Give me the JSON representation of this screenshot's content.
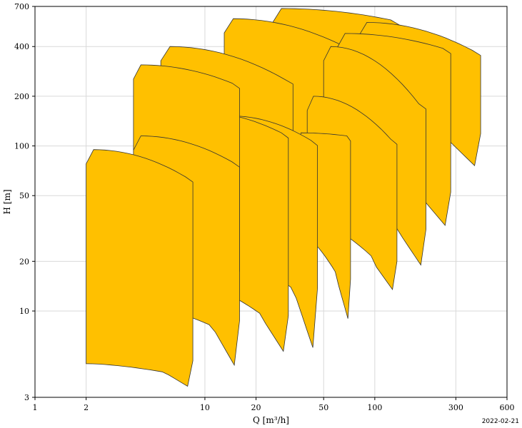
{
  "chart_data": {
    "type": "area",
    "x_scale": "log",
    "y_scale": "log",
    "xlim": [
      1,
      600
    ],
    "ylim": [
      3,
      700
    ],
    "grid": true,
    "xlabel": "Q [m³/h]",
    "ylabel": "H [m]",
    "x_ticks": [
      {
        "value": 1,
        "label": "1"
      },
      {
        "value": 2,
        "label": "2"
      },
      {
        "value": 10,
        "label": "10"
      },
      {
        "value": 20,
        "label": "20"
      },
      {
        "value": 50,
        "label": "50"
      },
      {
        "value": 100,
        "label": "100"
      },
      {
        "value": 300,
        "label": "300"
      },
      {
        "value": 600,
        "label": "600"
      }
    ],
    "y_ticks": [
      {
        "value": 3,
        "label": "3"
      },
      {
        "value": 10,
        "label": "10"
      },
      {
        "value": 20,
        "label": "20"
      },
      {
        "value": 50,
        "label": "50"
      },
      {
        "value": 100,
        "label": "100"
      },
      {
        "value": 200,
        "label": "200"
      },
      {
        "value": 400,
        "label": "400"
      },
      {
        "value": 700,
        "label": "700"
      }
    ],
    "fill_color": "#FFC000",
    "stroke_color": "#333333",
    "series": [
      {
        "q_min": 25,
        "q_max": 140,
        "h_top_left": 680,
        "h_top_right": 580,
        "h_bot_left": 115,
        "h_bot_right": 72,
        "h_bot_min": 70
      },
      {
        "q_min": 13,
        "q_max": 75,
        "h_top_left": 590,
        "h_top_right": 400,
        "h_bot_left": 72,
        "h_bot_right": 33,
        "h_bot_min": 30
      },
      {
        "q_min": 5.5,
        "q_max": 33,
        "h_top_left": 400,
        "h_top_right": 255,
        "h_bot_left": 36,
        "h_bot_right": 19,
        "h_bot_min": 15
      },
      {
        "q_min": 80,
        "q_max": 420,
        "h_top_left": 560,
        "h_top_right": 380,
        "h_bot_left": 150,
        "h_bot_right": 95,
        "h_bot_min": 76
      },
      {
        "q_min": 60,
        "q_max": 280,
        "h_top_left": 480,
        "h_top_right": 390,
        "h_bot_left": 75,
        "h_bot_right": 42,
        "h_bot_min": 33
      },
      {
        "q_min": 50,
        "q_max": 200,
        "h_top_left": 400,
        "h_top_right": 180,
        "h_bot_left": 48,
        "h_bot_right": 25,
        "h_bot_min": 19
      },
      {
        "q_min": 40,
        "q_max": 135,
        "h_top_left": 200,
        "h_top_right": 110,
        "h_bot_left": 36,
        "h_bot_right": 16,
        "h_bot_min": 13.5
      },
      {
        "q_min": 35,
        "q_max": 72,
        "h_top_left": 120,
        "h_top_right": 115,
        "h_bot_left": 30,
        "h_bot_right": 12.5,
        "h_bot_min": 9
      },
      {
        "q_min": 13,
        "q_max": 46,
        "h_top_left": 152,
        "h_top_right": 108,
        "h_bot_left": 21,
        "h_bot_right": 11,
        "h_bot_min": 6
      },
      {
        "q_min": 8,
        "q_max": 31,
        "h_top_left": 162,
        "h_top_right": 120,
        "h_bot_left": 15,
        "h_bot_right": 7.5,
        "h_bot_min": 5.7
      },
      {
        "q_min": 3.8,
        "q_max": 16,
        "h_top_left": 310,
        "h_top_right": 240,
        "h_bot_left": 17,
        "h_bot_right": 14,
        "h_bot_min": 13
      },
      {
        "q_min": 3.8,
        "q_max": 16,
        "h_top_left": 115,
        "h_top_right": 80,
        "h_bot_left": 11,
        "h_bot_right": 7,
        "h_bot_min": 4.7
      },
      {
        "q_min": 2,
        "q_max": 8.5,
        "h_top_left": 95,
        "h_top_right": 65,
        "h_bot_left": 4.8,
        "h_bot_right": 4,
        "h_bot_min": 3.5
      }
    ]
  },
  "footer": {
    "date": "2022-02-21"
  }
}
